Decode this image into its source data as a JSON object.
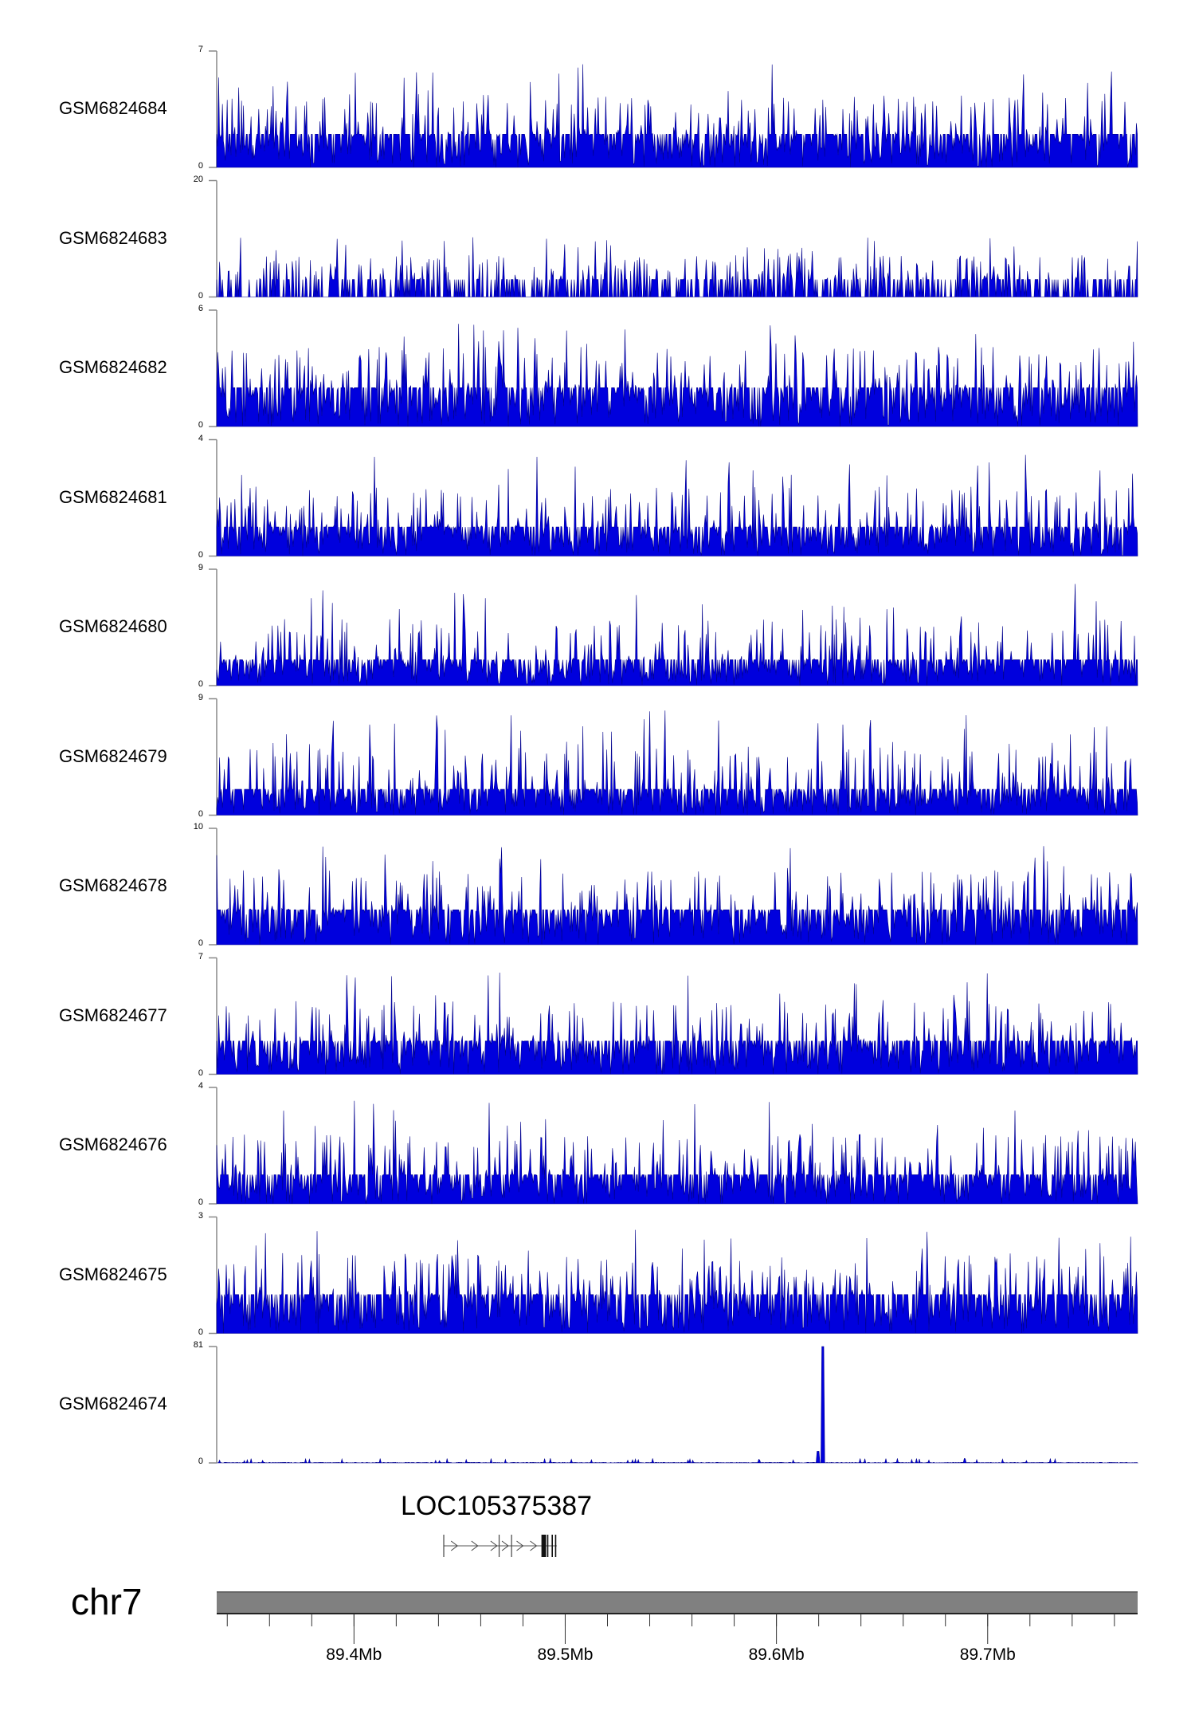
{
  "chart_data": {
    "type": "area",
    "title": "",
    "tracks": [
      {
        "name": "GSM6824684",
        "ylim": [
          0,
          7
        ],
        "ytick_labels": [
          "7",
          "0"
        ]
      },
      {
        "name": "GSM6824683",
        "ylim": [
          0,
          20
        ],
        "ytick_labels": [
          "20",
          "0"
        ]
      },
      {
        "name": "GSM6824682",
        "ylim": [
          0,
          6
        ],
        "ytick_labels": [
          "6",
          "0"
        ]
      },
      {
        "name": "GSM6824681",
        "ylim": [
          0,
          4
        ],
        "ytick_labels": [
          "4",
          "0"
        ]
      },
      {
        "name": "GSM6824680",
        "ylim": [
          0,
          9
        ],
        "ytick_labels": [
          "9",
          "0"
        ]
      },
      {
        "name": "GSM6824679",
        "ylim": [
          0,
          9
        ],
        "ytick_labels": [
          "9",
          "0"
        ]
      },
      {
        "name": "GSM6824678",
        "ylim": [
          0,
          10
        ],
        "ytick_labels": [
          "10",
          "0"
        ]
      },
      {
        "name": "GSM6824677",
        "ylim": [
          0,
          7
        ],
        "ytick_labels": [
          "7",
          "0"
        ]
      },
      {
        "name": "GSM6824676",
        "ylim": [
          0,
          4
        ],
        "ytick_labels": [
          "4",
          "0"
        ]
      },
      {
        "name": "GSM6824675",
        "ylim": [
          0,
          3
        ],
        "ytick_labels": [
          "3",
          "0"
        ]
      },
      {
        "name": "GSM6824674",
        "ylim": [
          0,
          81
        ],
        "ytick_labels": [
          "81",
          "0"
        ],
        "peak": {
          "x_mb": 89.622,
          "value": 81
        }
      }
    ],
    "gene": {
      "name": "LOC105375387",
      "start_mb": 89.4425,
      "end_mb": 89.496,
      "strand": "+"
    },
    "chromosome": "chr7",
    "xlim_mb": [
      89.335,
      89.771
    ],
    "x_ticks": [
      "89.4Mb",
      "89.5Mb",
      "89.6Mb",
      "89.7Mb"
    ],
    "x_tick_values": [
      89.4,
      89.5,
      89.6,
      89.7
    ],
    "signal_color": "#0000cc"
  }
}
